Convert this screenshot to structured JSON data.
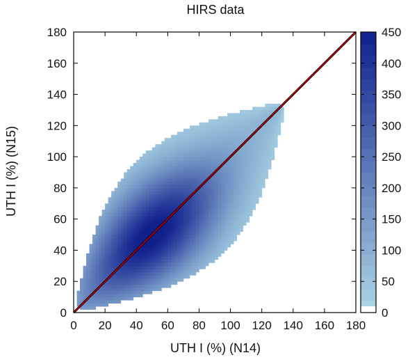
{
  "chart_data": {
    "type": "heatmap",
    "title": "HIRS data",
    "xlabel": "UTH I (%) (N14)",
    "ylabel": "UTH I (%) (N15)",
    "xlim": [
      0,
      180
    ],
    "ylim": [
      0,
      180
    ],
    "xticks": [
      0,
      20,
      40,
      60,
      80,
      100,
      120,
      140,
      160,
      180
    ],
    "yticks": [
      0,
      20,
      40,
      60,
      80,
      100,
      120,
      140,
      160,
      180
    ],
    "grid": false,
    "density": {
      "description_of_distribution": "2D histogram of N15 vs N14 UTH; density concentrated along the 1:1 line, peak near (45-55, 45-55), spread widening toward mid-range and narrowing at ends",
      "x_range": [
        3,
        135
      ],
      "y_range": [
        3,
        135
      ],
      "peak_count": 450
    },
    "reference_line": {
      "type": "y=x",
      "color": "#c0000a"
    },
    "colorbar": {
      "min": 0,
      "max": 450,
      "ticks": [
        0,
        50,
        100,
        150,
        200,
        250,
        300,
        350,
        400,
        450
      ],
      "colors": [
        "#add8e6",
        "#101f8c"
      ]
    }
  }
}
